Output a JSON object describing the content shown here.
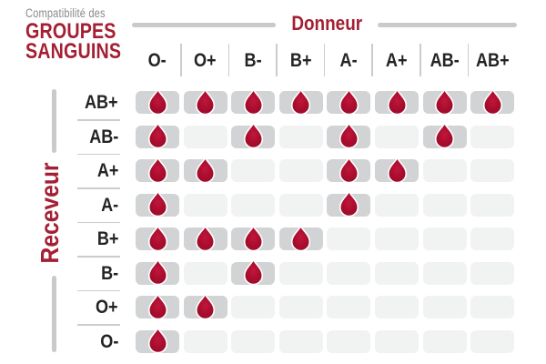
{
  "header": {
    "eyebrow": "Compatibilité des",
    "title_line1": "GROUPES",
    "title_line2": "SANGUINS"
  },
  "axes": {
    "donor": "Donneur",
    "receiver": "Receveur"
  },
  "chart_data": {
    "type": "table",
    "title": "Compatibilité des GROUPES SANGUINS",
    "columns_axis_label": "Donneur",
    "rows_axis_label": "Receveur",
    "columns": [
      "O-",
      "O+",
      "B-",
      "B+",
      "A-",
      "A+",
      "AB-",
      "AB+"
    ],
    "rows": [
      "AB+",
      "AB-",
      "A+",
      "A-",
      "B+",
      "B-",
      "O+",
      "O-"
    ],
    "matrix": [
      [
        1,
        1,
        1,
        1,
        1,
        1,
        1,
        1
      ],
      [
        1,
        0,
        1,
        0,
        1,
        0,
        1,
        0
      ],
      [
        1,
        1,
        0,
        0,
        1,
        1,
        0,
        0
      ],
      [
        1,
        0,
        0,
        0,
        1,
        0,
        0,
        0
      ],
      [
        1,
        1,
        1,
        1,
        0,
        0,
        0,
        0
      ],
      [
        1,
        0,
        1,
        0,
        0,
        0,
        0,
        0
      ],
      [
        1,
        1,
        0,
        0,
        0,
        0,
        0,
        0
      ],
      [
        1,
        0,
        0,
        0,
        0,
        0,
        0,
        0
      ]
    ],
    "marker": "blood-drop",
    "marker_meaning": "compatible"
  },
  "colors": {
    "accent_red": "#a41f33",
    "drop_red": "#a80d2e",
    "drop_red_light": "#c2163c",
    "cell_filled": "#d2d3d4",
    "cell_empty": "#f1f2f2",
    "line_gray": "#c9caca",
    "muted_text": "#8a8a8a",
    "label_text": "#242424"
  }
}
